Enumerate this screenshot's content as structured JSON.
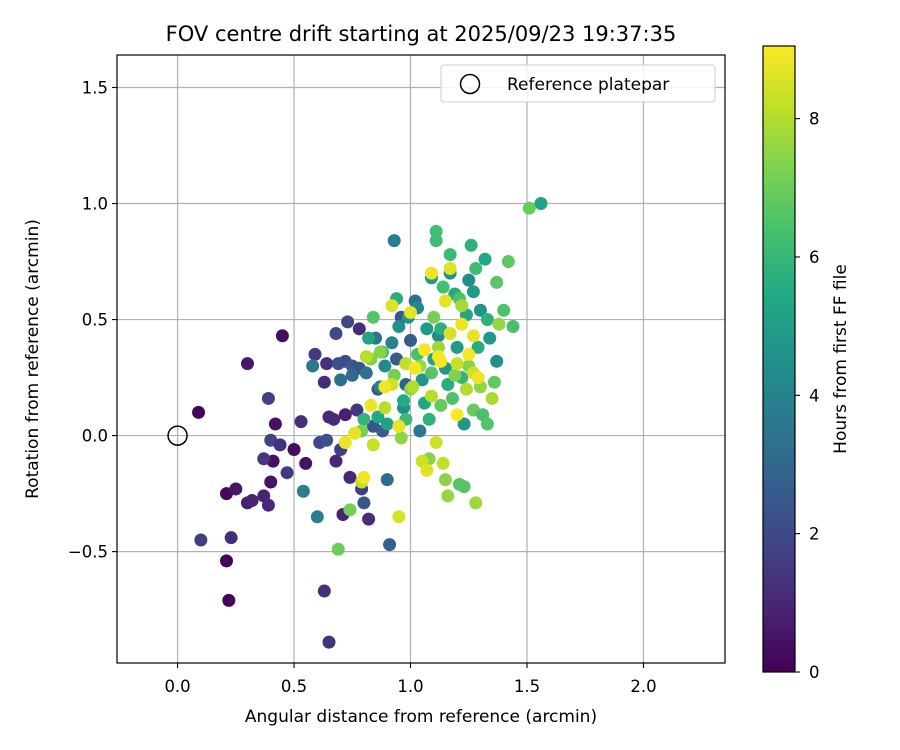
{
  "chart_data": {
    "type": "scatter",
    "title": "FOV centre drift starting at 2025/09/23 19:37:35",
    "xlabel": "Angular distance from reference (arcmin)",
    "ylabel": "Rotation from reference (arcmin)",
    "xlim": [
      -0.26,
      2.35
    ],
    "ylim": [
      -0.98,
      1.64
    ],
    "xticks": [
      0.0,
      0.5,
      1.0,
      1.5,
      2.0
    ],
    "xtick_labels": [
      "0.0",
      "0.5",
      "1.0",
      "1.5",
      "2.0"
    ],
    "yticks": [
      -0.5,
      0.0,
      0.5,
      1.0,
      1.5
    ],
    "ytick_labels": [
      "−0.5",
      "0.0",
      "0.5",
      "1.0",
      "1.5"
    ],
    "grid": true,
    "legend": {
      "position": "top-right",
      "entries": [
        "Reference platepar"
      ]
    },
    "reference_point": {
      "x": 0.0,
      "y": 0.0
    },
    "colorbar": {
      "label": "Hours from first FF file",
      "range": [
        0,
        9.05
      ],
      "ticks": [
        0,
        2,
        4,
        6,
        8
      ],
      "tick_labels": [
        "0",
        "2",
        "4",
        "6",
        "8"
      ],
      "colormap": "viridis"
    },
    "series": [
      {
        "name": "FF files",
        "points": [
          {
            "x": 0.09,
            "y": 0.1,
            "h": 0.1
          },
          {
            "x": 0.21,
            "y": -0.54,
            "h": 0.1
          },
          {
            "x": 0.22,
            "y": -0.71,
            "h": 0.1
          },
          {
            "x": 0.21,
            "y": -0.25,
            "h": 0.2
          },
          {
            "x": 0.45,
            "y": 0.43,
            "h": 0.3
          },
          {
            "x": 0.3,
            "y": 0.31,
            "h": 0.6
          },
          {
            "x": 0.25,
            "y": -0.23,
            "h": 0.6
          },
          {
            "x": 0.4,
            "y": -0.2,
            "h": 0.5
          },
          {
            "x": 0.41,
            "y": -0.11,
            "h": 0.4
          },
          {
            "x": 0.42,
            "y": 0.05,
            "h": 0.4
          },
          {
            "x": 0.5,
            "y": -0.06,
            "h": 0.3
          },
          {
            "x": 0.55,
            "y": -0.12,
            "h": 0.5
          },
          {
            "x": 0.3,
            "y": -0.29,
            "h": 0.8
          },
          {
            "x": 0.32,
            "y": -0.28,
            "h": 0.9
          },
          {
            "x": 0.37,
            "y": -0.26,
            "h": 0.9
          },
          {
            "x": 0.39,
            "y": -0.3,
            "h": 1.0
          },
          {
            "x": 0.23,
            "y": -0.44,
            "h": 1.1
          },
          {
            "x": 0.1,
            "y": -0.45,
            "h": 1.6
          },
          {
            "x": 0.37,
            "y": -0.1,
            "h": 1.4
          },
          {
            "x": 0.4,
            "y": -0.02,
            "h": 1.8
          },
          {
            "x": 0.44,
            "y": -0.04,
            "h": 1.3
          },
          {
            "x": 0.47,
            "y": -0.16,
            "h": 1.5
          },
          {
            "x": 0.39,
            "y": 0.16,
            "h": 1.7
          },
          {
            "x": 0.53,
            "y": 0.06,
            "h": 1.2
          },
          {
            "x": 0.63,
            "y": -0.67,
            "h": 1.2
          },
          {
            "x": 0.65,
            "y": -0.89,
            "h": 1.3
          },
          {
            "x": 0.59,
            "y": 0.35,
            "h": 1.5
          },
          {
            "x": 0.63,
            "y": 0.23,
            "h": 1.1
          },
          {
            "x": 0.64,
            "y": 0.31,
            "h": 1.3
          },
          {
            "x": 0.65,
            "y": 0.08,
            "h": 1.0
          },
          {
            "x": 0.67,
            "y": 0.07,
            "h": 1.1
          },
          {
            "x": 0.68,
            "y": -0.11,
            "h": 1.0
          },
          {
            "x": 0.7,
            "y": -0.06,
            "h": 1.7
          },
          {
            "x": 0.71,
            "y": -0.34,
            "h": 0.9
          },
          {
            "x": 0.72,
            "y": 0.09,
            "h": 0.8
          },
          {
            "x": 0.74,
            "y": -0.18,
            "h": 1.0
          },
          {
            "x": 0.77,
            "y": 0.11,
            "h": 1.4
          },
          {
            "x": 0.79,
            "y": -0.23,
            "h": 1.6
          },
          {
            "x": 0.82,
            "y": -0.36,
            "h": 1.2
          },
          {
            "x": 0.68,
            "y": 0.44,
            "h": 2.0
          },
          {
            "x": 0.73,
            "y": 0.49,
            "h": 1.9
          },
          {
            "x": 0.78,
            "y": 0.46,
            "h": 1.2
          },
          {
            "x": 0.61,
            "y": -0.03,
            "h": 2.0
          },
          {
            "x": 0.64,
            "y": -0.02,
            "h": 2.3
          },
          {
            "x": 0.69,
            "y": 0.31,
            "h": 2.2
          },
          {
            "x": 0.72,
            "y": 0.32,
            "h": 2.1
          },
          {
            "x": 0.75,
            "y": 0.3,
            "h": 2.5
          },
          {
            "x": 0.78,
            "y": 0.29,
            "h": 2.3
          },
          {
            "x": 0.8,
            "y": -0.29,
            "h": 2.4
          },
          {
            "x": 0.84,
            "y": 0.04,
            "h": 2.3
          },
          {
            "x": 0.86,
            "y": 0.2,
            "h": 2.4
          },
          {
            "x": 0.88,
            "y": 0.02,
            "h": 2.6
          },
          {
            "x": 0.91,
            "y": -0.47,
            "h": 2.7
          },
          {
            "x": 0.9,
            "y": -0.19,
            "h": 3.1
          },
          {
            "x": 0.93,
            "y": 0.84,
            "h": 3.8
          },
          {
            "x": 0.94,
            "y": 0.33,
            "h": 2.6
          },
          {
            "x": 0.96,
            "y": 0.51,
            "h": 2.2
          },
          {
            "x": 0.98,
            "y": 0.22,
            "h": 2.8
          },
          {
            "x": 1.0,
            "y": 0.41,
            "h": 2.6
          },
          {
            "x": 1.02,
            "y": 0.58,
            "h": 3.3
          },
          {
            "x": 1.04,
            "y": 0.02,
            "h": 3.7
          },
          {
            "x": 0.58,
            "y": 0.3,
            "h": 3.6
          },
          {
            "x": 0.54,
            "y": -0.24,
            "h": 3.8
          },
          {
            "x": 0.6,
            "y": -0.35,
            "h": 3.9
          },
          {
            "x": 0.7,
            "y": 0.24,
            "h": 3.3
          },
          {
            "x": 0.75,
            "y": 0.26,
            "h": 3.1
          },
          {
            "x": 0.81,
            "y": 0.27,
            "h": 3.4
          },
          {
            "x": 0.85,
            "y": 0.42,
            "h": 3.5
          },
          {
            "x": 0.87,
            "y": 0.21,
            "h": 3.9
          },
          {
            "x": 0.89,
            "y": 0.3,
            "h": 4.2
          },
          {
            "x": 0.92,
            "y": 0.4,
            "h": 4.0
          },
          {
            "x": 0.95,
            "y": 0.47,
            "h": 4.5
          },
          {
            "x": 0.97,
            "y": 0.12,
            "h": 4.4
          },
          {
            "x": 0.99,
            "y": 0.51,
            "h": 4.6
          },
          {
            "x": 1.03,
            "y": 0.55,
            "h": 4.1
          },
          {
            "x": 1.05,
            "y": 0.24,
            "h": 4.7
          },
          {
            "x": 1.07,
            "y": 0.46,
            "h": 4.9
          },
          {
            "x": 1.09,
            "y": 0.68,
            "h": 4.8
          },
          {
            "x": 1.12,
            "y": 0.43,
            "h": 4.3
          },
          {
            "x": 1.15,
            "y": 0.29,
            "h": 4.8
          },
          {
            "x": 1.17,
            "y": 0.7,
            "h": 4.6
          },
          {
            "x": 1.2,
            "y": 0.38,
            "h": 4.9
          },
          {
            "x": 1.23,
            "y": 0.05,
            "h": 4.7
          },
          {
            "x": 1.25,
            "y": 0.67,
            "h": 4.4
          },
          {
            "x": 1.27,
            "y": 0.62,
            "h": 4.9
          },
          {
            "x": 1.3,
            "y": 0.54,
            "h": 4.6
          },
          {
            "x": 1.34,
            "y": 0.42,
            "h": 4.8
          },
          {
            "x": 1.37,
            "y": 0.32,
            "h": 4.5
          },
          {
            "x": 1.56,
            "y": 1.0,
            "h": 5.2
          },
          {
            "x": 0.82,
            "y": 0.42,
            "h": 5.3
          },
          {
            "x": 0.86,
            "y": 0.08,
            "h": 5.4
          },
          {
            "x": 0.9,
            "y": 0.05,
            "h": 5.1
          },
          {
            "x": 0.94,
            "y": 0.59,
            "h": 5.6
          },
          {
            "x": 0.97,
            "y": 0.15,
            "h": 5.5
          },
          {
            "x": 1.06,
            "y": 0.14,
            "h": 5.4
          },
          {
            "x": 1.08,
            "y": 0.07,
            "h": 5.8
          },
          {
            "x": 1.1,
            "y": 0.33,
            "h": 5.2
          },
          {
            "x": 1.13,
            "y": 0.46,
            "h": 5.7
          },
          {
            "x": 1.16,
            "y": 0.22,
            "h": 5.6
          },
          {
            "x": 1.19,
            "y": 0.61,
            "h": 5.5
          },
          {
            "x": 1.22,
            "y": 0.25,
            "h": 5.9
          },
          {
            "x": 1.24,
            "y": 0.52,
            "h": 5.3
          },
          {
            "x": 1.26,
            "y": 0.82,
            "h": 5.8
          },
          {
            "x": 1.29,
            "y": 0.38,
            "h": 5.6
          },
          {
            "x": 1.32,
            "y": 0.76,
            "h": 5.4
          },
          {
            "x": 1.33,
            "y": 0.5,
            "h": 5.8
          },
          {
            "x": 0.8,
            "y": 0.07,
            "h": 5.9
          },
          {
            "x": 1.11,
            "y": 0.88,
            "h": 6.3
          },
          {
            "x": 1.11,
            "y": 0.84,
            "h": 6.2
          },
          {
            "x": 1.17,
            "y": 0.78,
            "h": 6.1
          },
          {
            "x": 1.14,
            "y": 0.64,
            "h": 6.3
          },
          {
            "x": 1.21,
            "y": 0.59,
            "h": 6.4
          },
          {
            "x": 1.28,
            "y": 0.72,
            "h": 6.2
          },
          {
            "x": 1.42,
            "y": 0.75,
            "h": 6.8
          },
          {
            "x": 1.37,
            "y": 0.66,
            "h": 6.7
          },
          {
            "x": 1.4,
            "y": 0.54,
            "h": 6.5
          },
          {
            "x": 1.44,
            "y": 0.47,
            "h": 6.4
          },
          {
            "x": 0.84,
            "y": 0.51,
            "h": 6.6
          },
          {
            "x": 0.88,
            "y": 0.36,
            "h": 6.3
          },
          {
            "x": 0.98,
            "y": 0.07,
            "h": 6.1
          },
          {
            "x": 1.03,
            "y": 0.35,
            "h": 6.4
          },
          {
            "x": 1.09,
            "y": 0.27,
            "h": 6.6
          },
          {
            "x": 1.13,
            "y": 0.13,
            "h": 6.9
          },
          {
            "x": 1.18,
            "y": 0.16,
            "h": 6.5
          },
          {
            "x": 1.21,
            "y": -0.21,
            "h": 6.7
          },
          {
            "x": 1.23,
            "y": -0.22,
            "h": 6.6
          },
          {
            "x": 1.27,
            "y": 0.11,
            "h": 6.9
          },
          {
            "x": 1.31,
            "y": 0.09,
            "h": 6.4
          },
          {
            "x": 1.33,
            "y": 0.05,
            "h": 6.6
          },
          {
            "x": 1.36,
            "y": 0.23,
            "h": 6.8
          },
          {
            "x": 1.51,
            "y": 0.98,
            "h": 6.9
          },
          {
            "x": 0.69,
            "y": -0.49,
            "h": 7.0
          },
          {
            "x": 0.74,
            "y": -0.32,
            "h": 7.1
          },
          {
            "x": 0.79,
            "y": 0.02,
            "h": 7.2
          },
          {
            "x": 0.83,
            "y": 0.33,
            "h": 7.3
          },
          {
            "x": 0.87,
            "y": 0.36,
            "h": 7.4
          },
          {
            "x": 0.93,
            "y": 0.26,
            "h": 7.1
          },
          {
            "x": 0.96,
            "y": -0.01,
            "h": 7.5
          },
          {
            "x": 1.0,
            "y": 0.2,
            "h": 7.3
          },
          {
            "x": 1.04,
            "y": 0.3,
            "h": 7.6
          },
          {
            "x": 1.08,
            "y": -0.1,
            "h": 7.4
          },
          {
            "x": 1.1,
            "y": 0.51,
            "h": 7.2
          },
          {
            "x": 1.12,
            "y": 0.38,
            "h": 7.7
          },
          {
            "x": 1.15,
            "y": -0.19,
            "h": 7.5
          },
          {
            "x": 1.16,
            "y": -0.26,
            "h": 7.6
          },
          {
            "x": 1.19,
            "y": 0.26,
            "h": 7.3
          },
          {
            "x": 1.22,
            "y": 0.56,
            "h": 7.8
          },
          {
            "x": 1.25,
            "y": 0.3,
            "h": 7.4
          },
          {
            "x": 1.28,
            "y": -0.29,
            "h": 7.7
          },
          {
            "x": 1.3,
            "y": 0.21,
            "h": 7.5
          },
          {
            "x": 1.35,
            "y": 0.16,
            "h": 7.9
          },
          {
            "x": 1.38,
            "y": 0.48,
            "h": 7.6
          },
          {
            "x": 0.79,
            "y": -0.2,
            "h": 8.2
          },
          {
            "x": 0.84,
            "y": -0.04,
            "h": 8.3
          },
          {
            "x": 0.89,
            "y": 0.12,
            "h": 8.1
          },
          {
            "x": 0.92,
            "y": 0.22,
            "h": 8.4
          },
          {
            "x": 0.95,
            "y": -0.35,
            "h": 8.5
          },
          {
            "x": 0.98,
            "y": 0.31,
            "h": 8.2
          },
          {
            "x": 1.01,
            "y": 0.21,
            "h": 8.0
          },
          {
            "x": 1.05,
            "y": -0.11,
            "h": 8.3
          },
          {
            "x": 1.07,
            "y": -0.15,
            "h": 8.6
          },
          {
            "x": 1.09,
            "y": 0.17,
            "h": 8.1
          },
          {
            "x": 1.11,
            "y": -0.03,
            "h": 8.4
          },
          {
            "x": 1.14,
            "y": -0.12,
            "h": 8.2
          },
          {
            "x": 1.17,
            "y": 0.44,
            "h": 8.5
          },
          {
            "x": 1.2,
            "y": 0.31,
            "h": 8.3
          },
          {
            "x": 1.24,
            "y": 0.2,
            "h": 8.0
          },
          {
            "x": 1.27,
            "y": 0.27,
            "h": 8.4
          },
          {
            "x": 0.72,
            "y": -0.03,
            "h": 8.8
          },
          {
            "x": 0.76,
            "y": 0.01,
            "h": 8.7
          },
          {
            "x": 0.8,
            "y": -0.18,
            "h": 8.9
          },
          {
            "x": 0.83,
            "y": 0.13,
            "h": 8.8
          },
          {
            "x": 0.89,
            "y": 0.21,
            "h": 8.9
          },
          {
            "x": 0.92,
            "y": 0.56,
            "h": 8.6
          },
          {
            "x": 0.95,
            "y": 0.04,
            "h": 8.8
          },
          {
            "x": 1.0,
            "y": 0.53,
            "h": 8.7
          },
          {
            "x": 1.02,
            "y": 0.29,
            "h": 8.9
          },
          {
            "x": 1.06,
            "y": 0.37,
            "h": 9.0
          },
          {
            "x": 1.09,
            "y": 0.7,
            "h": 8.8
          },
          {
            "x": 1.12,
            "y": 0.34,
            "h": 8.9
          },
          {
            "x": 1.15,
            "y": 0.58,
            "h": 8.7
          },
          {
            "x": 1.17,
            "y": 0.72,
            "h": 8.6
          },
          {
            "x": 1.2,
            "y": 0.09,
            "h": 9.0
          },
          {
            "x": 1.22,
            "y": 0.48,
            "h": 8.8
          },
          {
            "x": 1.25,
            "y": 0.35,
            "h": 8.9
          },
          {
            "x": 1.27,
            "y": 0.43,
            "h": 8.7
          },
          {
            "x": 1.29,
            "y": 0.25,
            "h": 8.8
          },
          {
            "x": 0.81,
            "y": 0.34,
            "h": 8.1
          },
          {
            "x": 1.13,
            "y": 0.32,
            "h": 9.0
          }
        ]
      }
    ]
  }
}
